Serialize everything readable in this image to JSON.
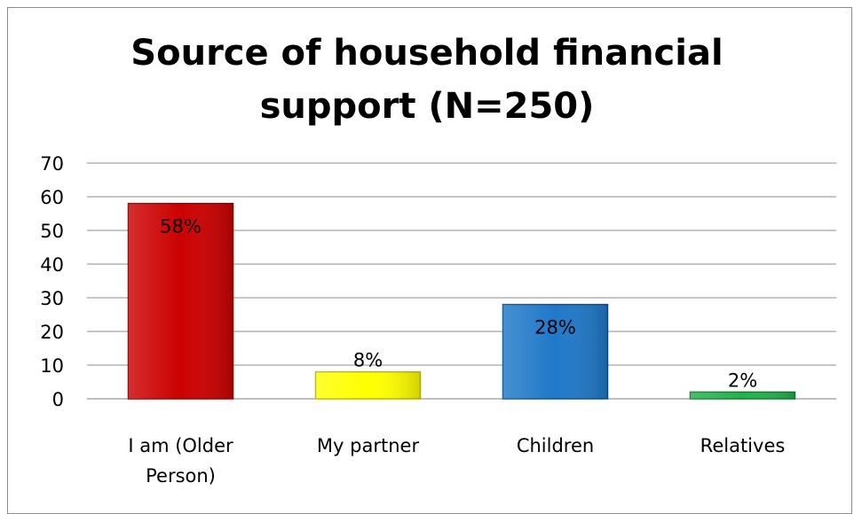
{
  "chart_data": {
    "type": "bar",
    "title_lines": [
      "Source of household financial",
      "support (N=250)"
    ],
    "categories": [
      [
        "I am (Older",
        "Person)"
      ],
      [
        "My partner"
      ],
      [
        "Children"
      ],
      [
        "Relatives"
      ]
    ],
    "values": [
      58,
      8,
      28,
      2
    ],
    "data_labels": [
      "58%",
      "8%",
      "28%",
      "2%"
    ],
    "bar_colors": [
      "#cc0000",
      "#ffff00",
      "#1f78c8",
      "#22b24c"
    ],
    "bar_edge_colors": [
      "#8b0000",
      "#b8b800",
      "#0d4f8f",
      "#137a33"
    ],
    "yticks": [
      0,
      10,
      20,
      30,
      40,
      50,
      60,
      70
    ],
    "ylim": [
      0,
      70
    ],
    "grid": true,
    "legend": "none"
  }
}
